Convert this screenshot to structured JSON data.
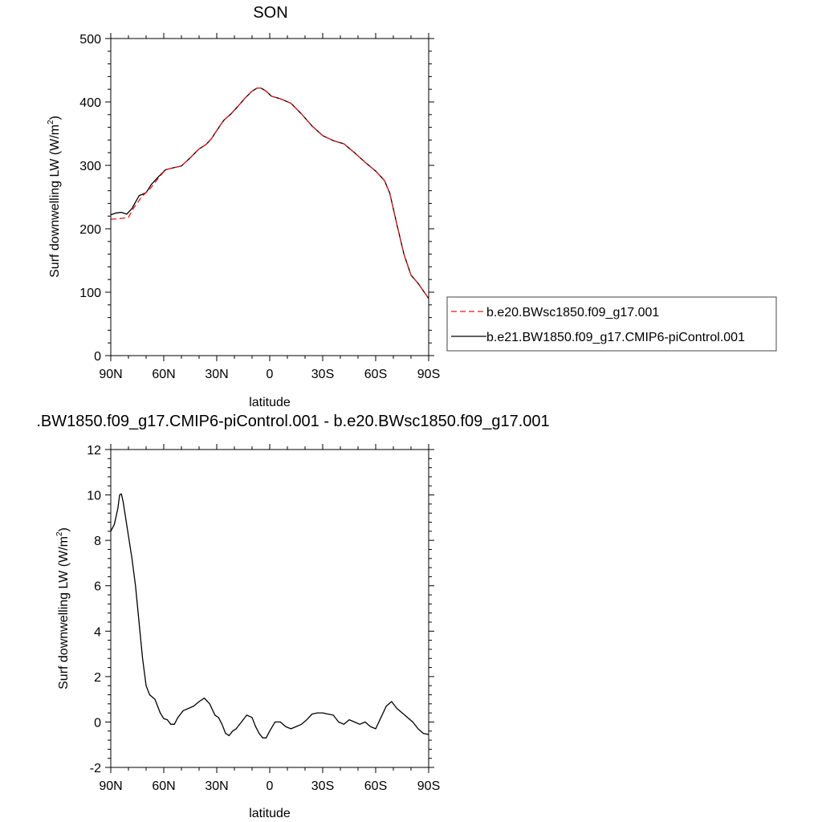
{
  "chart_data": [
    {
      "type": "line",
      "title": "SON",
      "xlabel": "latitude",
      "ylabel": "Surf downwelling LW",
      "ylabel_unit_prefix": " (W/m",
      "ylabel_unit_power": "2",
      "ylabel_unit_suffix": ")",
      "xlim": [
        90,
        -90
      ],
      "ylim": [
        0,
        500
      ],
      "x_ticks": [
        {
          "value": 90,
          "label": "90N"
        },
        {
          "value": 60,
          "label": "60N"
        },
        {
          "value": 30,
          "label": "30N"
        },
        {
          "value": 0,
          "label": "0"
        },
        {
          "value": -30,
          "label": "30S"
        },
        {
          "value": -60,
          "label": "60S"
        },
        {
          "value": -90,
          "label": "90S"
        }
      ],
      "y_ticks": [
        {
          "value": 0,
          "label": "0"
        },
        {
          "value": 100,
          "label": "100"
        },
        {
          "value": 200,
          "label": "200"
        },
        {
          "value": 300,
          "label": "300"
        },
        {
          "value": 400,
          "label": "400"
        },
        {
          "value": 500,
          "label": "500"
        }
      ],
      "legend_position": "right",
      "series": [
        {
          "name": "b.e20.BWsc1850.f09_g17.001",
          "color": "#e41a1c",
          "dash": "dashed",
          "x": [
            90,
            85,
            80,
            77,
            72,
            68,
            63,
            59,
            55,
            50,
            45,
            40,
            36,
            33,
            30,
            26,
            22,
            18,
            14,
            10,
            7,
            5,
            2,
            -1,
            -6,
            -12,
            -18,
            -24,
            -30,
            -36,
            -42,
            -48,
            -54,
            -60,
            -65,
            -68,
            -72,
            -76,
            -80,
            -84,
            -87,
            -90
          ],
          "y": [
            215,
            216,
            218,
            233,
            252,
            262,
            280,
            293,
            296,
            299,
            312,
            326,
            333,
            342,
            355,
            371,
            381,
            393,
            406,
            417,
            422,
            422,
            417,
            409,
            405,
            398,
            381,
            362,
            347,
            339,
            334,
            320,
            305,
            291,
            276,
            256,
            207,
            160,
            127,
            114,
            102,
            90
          ]
        },
        {
          "name": "b.e21.BW1850.f09_g17.CMIP6-piControl.001",
          "color": "#000000",
          "dash": "solid",
          "x": [
            90,
            87,
            84,
            81,
            78,
            74,
            70,
            67,
            63,
            59,
            55,
            50,
            45,
            40,
            36,
            33,
            30,
            26,
            22,
            18,
            14,
            10,
            7,
            5,
            2,
            -1,
            -6,
            -12,
            -18,
            -24,
            -30,
            -36,
            -42,
            -48,
            -54,
            -60,
            -65,
            -68,
            -72,
            -76,
            -80,
            -84,
            -87,
            -90
          ],
          "y": [
            222,
            225,
            226,
            223,
            232,
            252,
            257,
            270,
            282,
            293,
            296,
            299,
            312,
            326,
            333,
            342,
            355,
            371,
            381,
            393,
            406,
            417,
            422,
            422,
            417,
            409,
            405,
            398,
            381,
            362,
            347,
            339,
            334,
            320,
            305,
            291,
            276,
            256,
            207,
            160,
            127,
            114,
            102,
            90
          ]
        }
      ]
    },
    {
      "type": "line",
      "title": ".BW1850.f09_g17.CMIP6-piControl.001 - b.e20.BWsc1850.f09_g17.001",
      "xlabel": "latitude",
      "ylabel": "Surf downwelling LW",
      "ylabel_unit_prefix": " (W/m",
      "ylabel_unit_power": "2",
      "ylabel_unit_suffix": ")",
      "xlim": [
        90,
        -90
      ],
      "ylim": [
        -2,
        12
      ],
      "x_ticks": [
        {
          "value": 90,
          "label": "90N"
        },
        {
          "value": 60,
          "label": "60N"
        },
        {
          "value": 30,
          "label": "30N"
        },
        {
          "value": 0,
          "label": "0"
        },
        {
          "value": -30,
          "label": "30S"
        },
        {
          "value": -60,
          "label": "60S"
        },
        {
          "value": -90,
          "label": "90S"
        }
      ],
      "y_ticks": [
        {
          "value": -2,
          "label": "-2"
        },
        {
          "value": 0,
          "label": "0"
        },
        {
          "value": 2,
          "label": "2"
        },
        {
          "value": 4,
          "label": "4"
        },
        {
          "value": 6,
          "label": "6"
        },
        {
          "value": 8,
          "label": "8"
        },
        {
          "value": 10,
          "label": "10"
        },
        {
          "value": 12,
          "label": "12"
        }
      ],
      "series": [
        {
          "name": "",
          "color": "#000000",
          "dash": "solid",
          "x": [
            90,
            88,
            86,
            85,
            84,
            83,
            81,
            78,
            76,
            74,
            72,
            70,
            68,
            65,
            62,
            60,
            58,
            56,
            54,
            52,
            49,
            46,
            43,
            40,
            37,
            34,
            31,
            29,
            27,
            25,
            23,
            21,
            19,
            16,
            13,
            10,
            8,
            6,
            4,
            2,
            0,
            -3,
            -6,
            -9,
            -12,
            -15,
            -18,
            -21,
            -24,
            -27,
            -30,
            -33,
            -36,
            -39,
            -42,
            -45,
            -48,
            -51,
            -54,
            -57,
            -60,
            -63,
            -66,
            -69,
            -72,
            -75,
            -78,
            -81,
            -84,
            -87,
            -90
          ],
          "y": [
            8.4,
            8.7,
            9.4,
            10.0,
            10.05,
            9.7,
            8.7,
            7.2,
            6.0,
            4.4,
            2.8,
            1.6,
            1.2,
            1.0,
            0.4,
            0.15,
            0.1,
            -0.1,
            -0.1,
            0.2,
            0.5,
            0.6,
            0.7,
            0.9,
            1.05,
            0.8,
            0.3,
            0.2,
            -0.1,
            -0.5,
            -0.6,
            -0.4,
            -0.3,
            0.0,
            0.3,
            0.2,
            -0.2,
            -0.5,
            -0.7,
            -0.7,
            -0.4,
            0.0,
            0.0,
            -0.2,
            -0.3,
            -0.2,
            -0.1,
            0.1,
            0.35,
            0.4,
            0.4,
            0.35,
            0.3,
            0.0,
            -0.1,
            0.1,
            0.0,
            -0.1,
            0.0,
            -0.2,
            -0.3,
            0.2,
            0.7,
            0.9,
            0.6,
            0.4,
            0.2,
            0.0,
            -0.3,
            -0.5,
            -0.55
          ]
        }
      ]
    }
  ]
}
